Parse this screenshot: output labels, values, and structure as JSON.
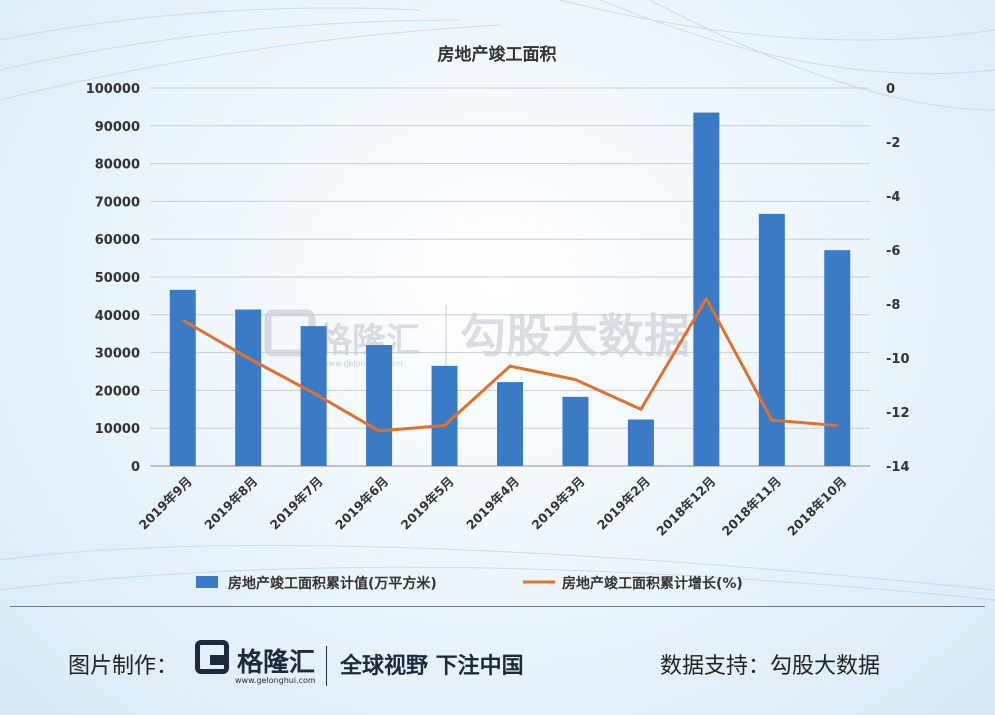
{
  "chart_data": {
    "type": "bar+line",
    "title": "房地产竣工面积",
    "categories": [
      "2019年9月",
      "2019年8月",
      "2019年7月",
      "2019年6月",
      "2019年5月",
      "2019年4月",
      "2019年3月",
      "2019年2月",
      "2018年12月",
      "2018年11月",
      "2018年10月"
    ],
    "series": [
      {
        "name": "房地产竣工面积累计值(万平方米)",
        "type": "bar",
        "axis": "left",
        "color": "#3b7bc6",
        "values": [
          46600,
          41400,
          37000,
          32000,
          26500,
          22200,
          18300,
          12300,
          93500,
          66700,
          57100
        ]
      },
      {
        "name": "房地产竣工面积累计增长(%)",
        "type": "line",
        "axis": "right",
        "color": "#e0712c",
        "values": [
          -8.6,
          -10.0,
          -11.3,
          -12.7,
          -12.5,
          -10.3,
          -10.8,
          -11.9,
          -7.8,
          -12.3,
          -12.5
        ]
      }
    ],
    "y_left": {
      "min": 0,
      "max": 100000,
      "ticks": [
        "0",
        "10000",
        "20000",
        "30000",
        "40000",
        "50000",
        "60000",
        "70000",
        "80000",
        "90000",
        "100000"
      ]
    },
    "y_right": {
      "min": -14,
      "max": 0,
      "ticks": [
        "0",
        "-2",
        "-4",
        "-6",
        "-8",
        "-10",
        "-12",
        "-14"
      ]
    },
    "grid": true,
    "legend": "bottom"
  },
  "watermark": {
    "brand": "格隆汇",
    "url": "www.gelonghui.com",
    "data": "勾股大数据"
  },
  "footer": {
    "made_by": "图片制作：",
    "brand": "格隆汇",
    "brand_url": "www.gelonghui.com",
    "slogan": "全球视野 下注中国",
    "support": "数据支持：勾股大数据"
  }
}
